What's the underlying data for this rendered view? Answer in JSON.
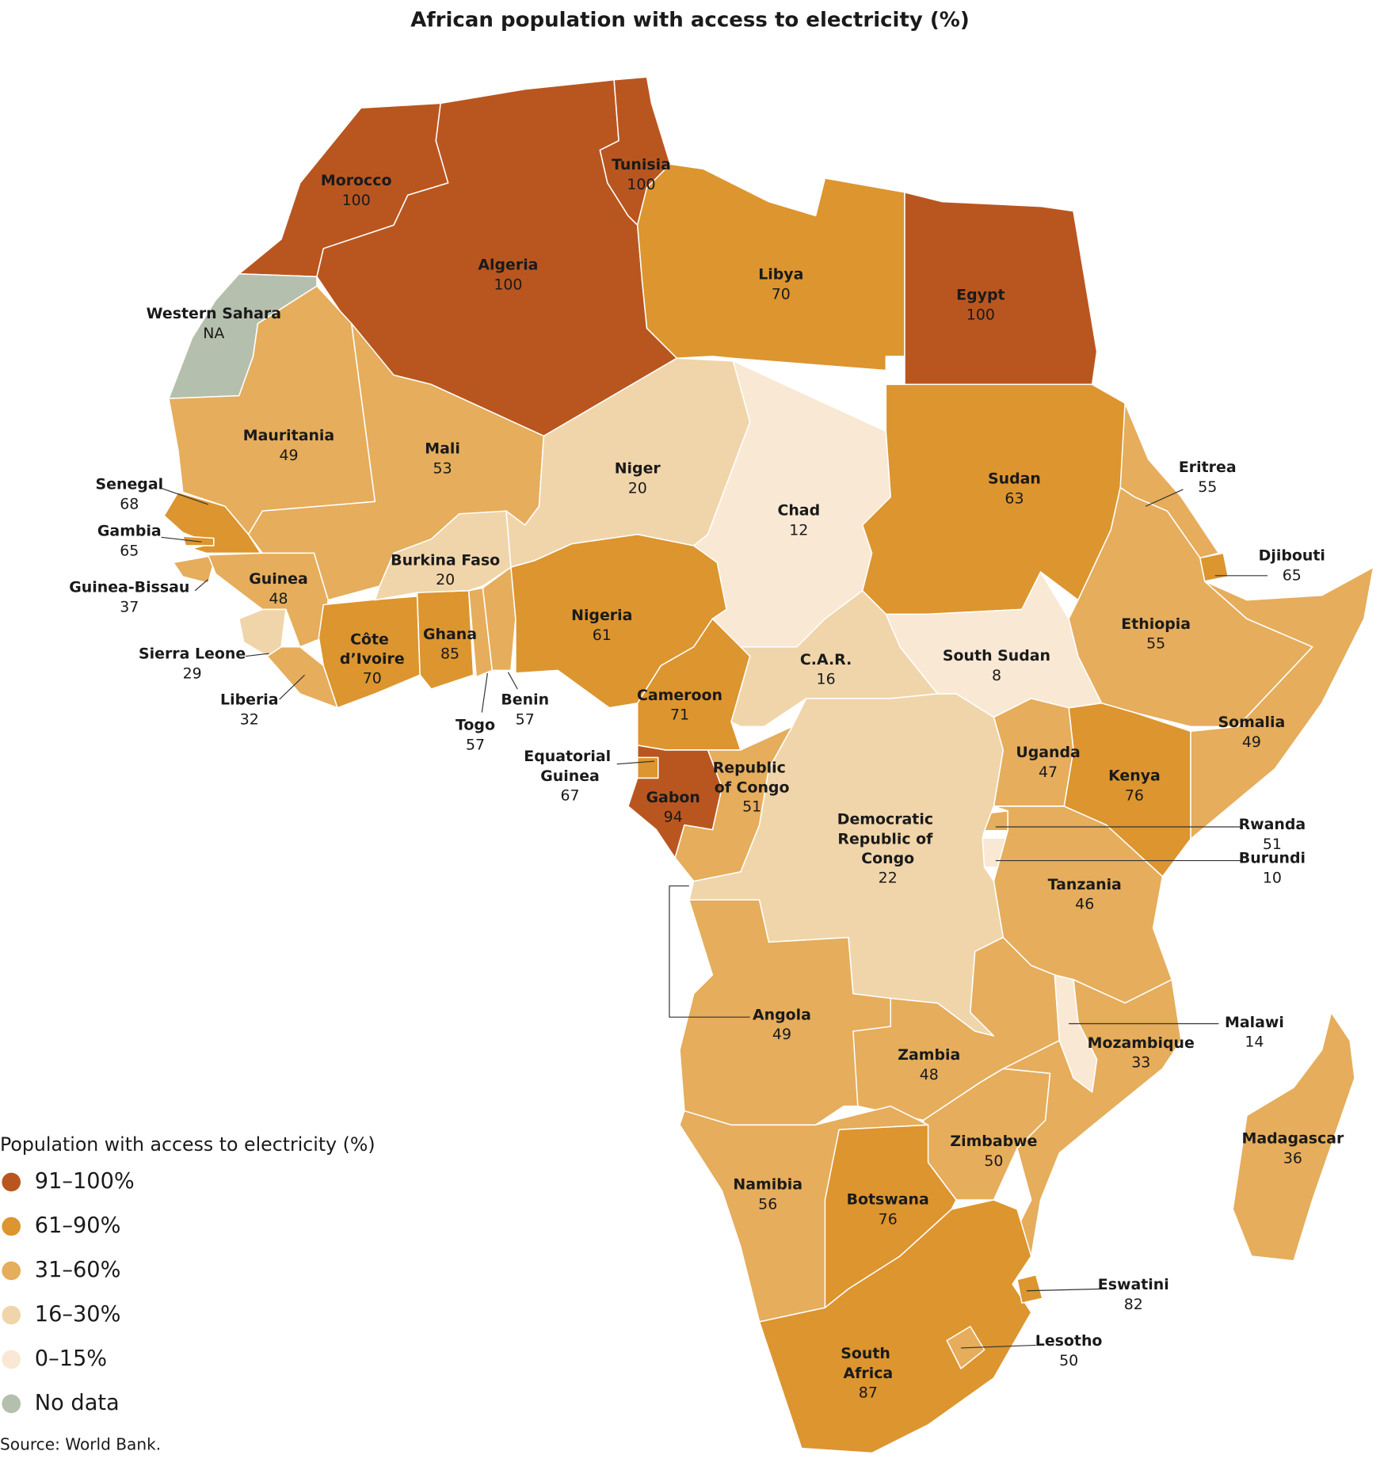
{
  "chart_data": {
    "type": "choropleth",
    "title": "African population with access to electricity (%)",
    "legend_title": "Population with access to electricity (%)",
    "legend": [
      {
        "label": "91–100%",
        "range": [
          91,
          100
        ],
        "color": "#b9561f"
      },
      {
        "label": "61–90%",
        "range": [
          61,
          90
        ],
        "color": "#dc952f"
      },
      {
        "label": "31–60%",
        "range": [
          31,
          60
        ],
        "color": "#e5ad5c"
      },
      {
        "label": "16–30%",
        "range": [
          16,
          30
        ],
        "color": "#f0d5aa"
      },
      {
        "label": "0–15%",
        "range": [
          0,
          15
        ],
        "color": "#f9e8d3"
      },
      {
        "label": "No data",
        "color": "#b5bfad"
      }
    ],
    "countries": [
      {
        "name": "Morocco",
        "value": 100
      },
      {
        "name": "Algeria",
        "value": 100
      },
      {
        "name": "Tunisia",
        "value": 100
      },
      {
        "name": "Libya",
        "value": 70
      },
      {
        "name": "Egypt",
        "value": 100
      },
      {
        "name": "Western Sahara",
        "value": null,
        "value_label": "NA"
      },
      {
        "name": "Mauritania",
        "value": 49
      },
      {
        "name": "Mali",
        "value": 53
      },
      {
        "name": "Senegal",
        "value": 68
      },
      {
        "name": "Gambia",
        "value": 65
      },
      {
        "name": "Guinea-Bissau",
        "value": 37
      },
      {
        "name": "Guinea",
        "value": 48
      },
      {
        "name": "Sierra Leone",
        "value": 29
      },
      {
        "name": "Liberia",
        "value": 32
      },
      {
        "name": "Côte d’Ivoire",
        "value": 70
      },
      {
        "name": "Ghana",
        "value": 85
      },
      {
        "name": "Burkina Faso",
        "value": 20
      },
      {
        "name": "Togo",
        "value": 57
      },
      {
        "name": "Benin",
        "value": 57
      },
      {
        "name": "Niger",
        "value": 20
      },
      {
        "name": "Nigeria",
        "value": 61
      },
      {
        "name": "Chad",
        "value": 12
      },
      {
        "name": "Cameroon",
        "value": 71
      },
      {
        "name": "C.A.R.",
        "value": 16
      },
      {
        "name": "Sudan",
        "value": 63
      },
      {
        "name": "South Sudan",
        "value": 8
      },
      {
        "name": "Eritrea",
        "value": 55
      },
      {
        "name": "Djibouti",
        "value": 65
      },
      {
        "name": "Ethiopia",
        "value": 55
      },
      {
        "name": "Somalia",
        "value": 49
      },
      {
        "name": "Kenya",
        "value": 76
      },
      {
        "name": "Uganda",
        "value": 47
      },
      {
        "name": "Rwanda",
        "value": 51
      },
      {
        "name": "Burundi",
        "value": 10
      },
      {
        "name": "Tanzania",
        "value": 46
      },
      {
        "name": "Democratic Republic of Congo",
        "value": 22
      },
      {
        "name": "Republic of Congo",
        "value": 51
      },
      {
        "name": "Gabon",
        "value": 94
      },
      {
        "name": "Equatorial Guinea",
        "value": 67
      },
      {
        "name": "Angola",
        "value": 49
      },
      {
        "name": "Zambia",
        "value": 48
      },
      {
        "name": "Malawi",
        "value": 14
      },
      {
        "name": "Mozambique",
        "value": 33
      },
      {
        "name": "Zimbabwe",
        "value": 50
      },
      {
        "name": "Namibia",
        "value": 56
      },
      {
        "name": "Botswana",
        "value": 76
      },
      {
        "name": "South Africa",
        "value": 87
      },
      {
        "name": "Eswatini",
        "value": 82
      },
      {
        "name": "Lesotho",
        "value": 50
      },
      {
        "name": "Madagascar",
        "value": 36
      }
    ],
    "source": "Source: World Bank."
  }
}
